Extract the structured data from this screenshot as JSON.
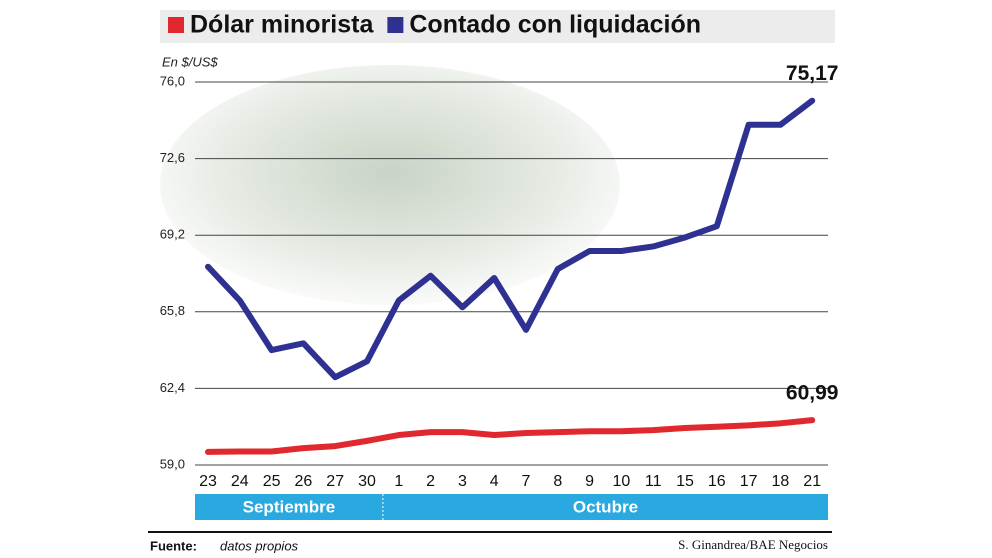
{
  "chart_data": {
    "type": "line",
    "unit_label": "En $/US$",
    "categories": [
      "23",
      "24",
      "25",
      "26",
      "27",
      "30",
      "1",
      "2",
      "3",
      "4",
      "7",
      "8",
      "9",
      "10",
      "11",
      "15",
      "16",
      "17",
      "18",
      "21"
    ],
    "months": [
      "Septiembre",
      "Octubre"
    ],
    "series": [
      {
        "name": "Dólar minorista",
        "color": "#e0282e",
        "values": [
          59.58,
          59.6,
          59.6,
          59.75,
          59.84,
          60.07,
          60.33,
          60.46,
          60.46,
          60.33,
          60.42,
          60.46,
          60.5,
          60.5,
          60.55,
          60.64,
          60.7,
          60.76,
          60.85,
          60.99
        ],
        "value_labels": [
          null,
          null,
          null,
          null,
          null,
          null,
          null,
          null,
          null,
          null,
          null,
          null,
          null,
          null,
          null,
          null,
          null,
          null,
          null,
          "60,99"
        ]
      },
      {
        "name": "Contado con liquidación",
        "color": "#2e3192",
        "values": [
          67.8,
          66.3,
          64.1,
          64.4,
          62.9,
          63.6,
          66.3,
          67.4,
          66.0,
          67.3,
          65.0,
          67.7,
          68.5,
          68.5,
          68.7,
          69.1,
          69.6,
          74.1,
          74.1,
          75.17
        ],
        "value_labels": [
          null,
          null,
          null,
          null,
          null,
          null,
          null,
          null,
          null,
          null,
          null,
          null,
          null,
          null,
          null,
          null,
          null,
          null,
          null,
          "75,17"
        ]
      }
    ],
    "ylim": [
      59.0,
      76.0
    ],
    "yticks": [
      {
        "value": 59.0,
        "label": "59,0"
      },
      {
        "value": 62.4,
        "label": "62,4"
      },
      {
        "value": 65.8,
        "label": "65,8"
      },
      {
        "value": 69.2,
        "label": "69,2"
      },
      {
        "value": 72.6,
        "label": "72,6"
      },
      {
        "value": 76.0,
        "label": "76,0"
      }
    ],
    "grid": true,
    "source_label": "Fuente:",
    "source": "datos propios",
    "credit": "S. Ginandrea/BAE Negocios"
  }
}
